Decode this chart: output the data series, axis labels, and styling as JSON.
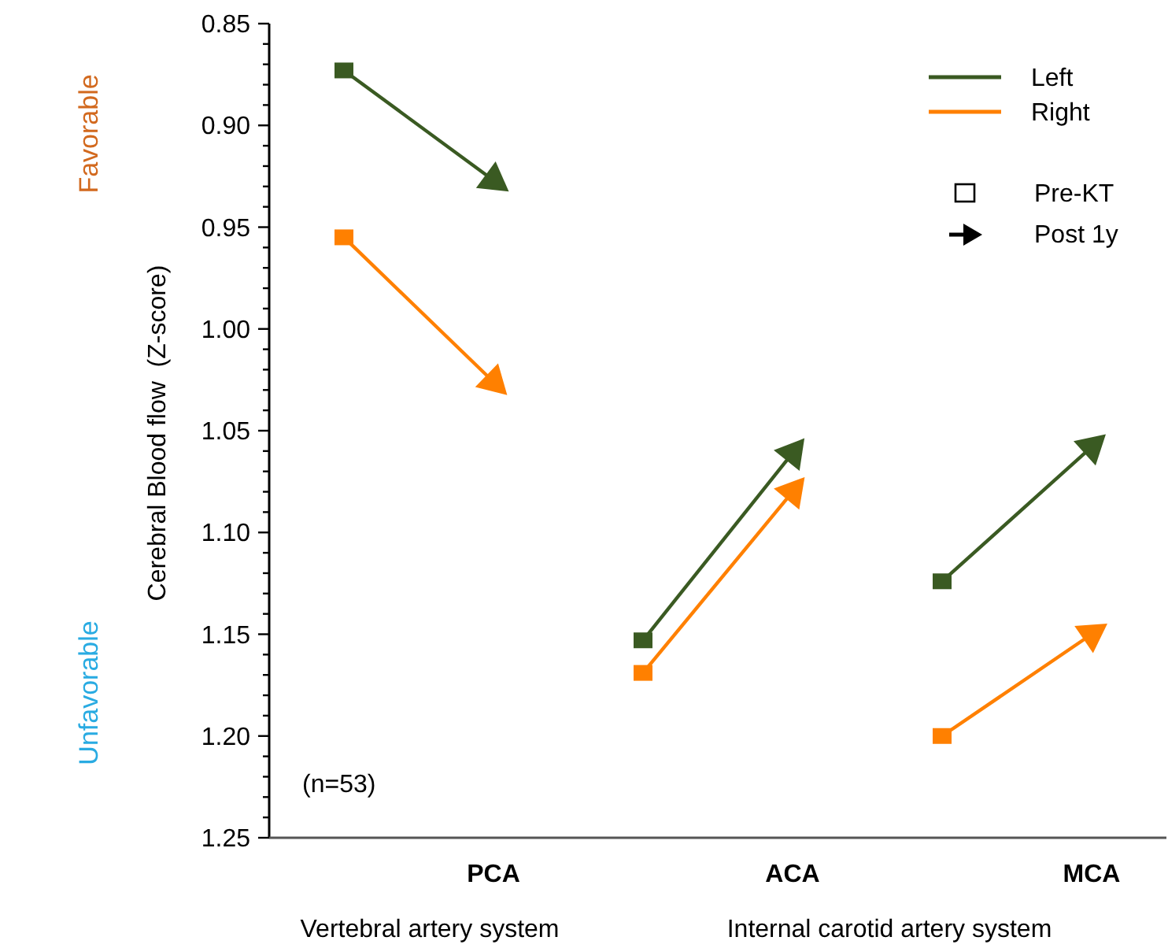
{
  "chart_data": {
    "type": "line",
    "ylabel": "Cerebral Blood flow  (Z-score)",
    "categories": [
      null,
      "PCA",
      null,
      "ACA",
      null,
      "MCA"
    ],
    "ylim": [
      1.25,
      0.85
    ],
    "yticks": [
      {
        "value": 0.85,
        "label": "0.85"
      },
      {
        "value": 0.86,
        "label": null
      },
      {
        "value": 0.87,
        "label": null
      },
      {
        "value": 0.88,
        "label": null
      },
      {
        "value": 0.89,
        "label": null
      },
      {
        "value": 0.9,
        "label": "0.90"
      },
      {
        "value": 0.91,
        "label": null
      },
      {
        "value": 0.92,
        "label": null
      },
      {
        "value": 0.93,
        "label": null
      },
      {
        "value": 0.94,
        "label": null
      },
      {
        "value": 0.95,
        "label": "0.95"
      },
      {
        "value": 0.96,
        "label": null
      },
      {
        "value": 0.97,
        "label": null
      },
      {
        "value": 0.98,
        "label": null
      },
      {
        "value": 0.99,
        "label": null
      },
      {
        "value": 1.0,
        "label": "1.00"
      },
      {
        "value": 1.01,
        "label": null
      },
      {
        "value": 1.02,
        "label": null
      },
      {
        "value": 1.03,
        "label": null
      },
      {
        "value": 1.04,
        "label": null
      },
      {
        "value": 1.05,
        "label": "1.05"
      },
      {
        "value": 1.06,
        "label": null
      },
      {
        "value": 1.07,
        "label": null
      },
      {
        "value": 1.08,
        "label": null
      },
      {
        "value": 1.09,
        "label": null
      },
      {
        "value": 1.1,
        "label": "1.10"
      },
      {
        "value": 1.11,
        "label": null
      },
      {
        "value": 1.12,
        "label": null
      },
      {
        "value": 1.13,
        "label": null
      },
      {
        "value": 1.14,
        "label": null
      },
      {
        "value": 1.15,
        "label": "1.15"
      },
      {
        "value": 1.16,
        "label": null
      },
      {
        "value": 1.17,
        "label": null
      },
      {
        "value": 1.18,
        "label": null
      },
      {
        "value": 1.19,
        "label": null
      },
      {
        "value": 1.2,
        "label": "1.20"
      },
      {
        "value": 1.21,
        "label": null
      },
      {
        "value": 1.22,
        "label": null
      },
      {
        "value": 1.23,
        "label": null
      },
      {
        "value": 1.24,
        "label": null
      },
      {
        "value": 1.25,
        "label": "1.25"
      }
    ],
    "legend": "top right",
    "grid": false,
    "series": [
      {
        "name": "Left",
        "color": "#3a5a22",
        "values": [
          0.873,
          0.927,
          null,
          null,
          null,
          null
        ]
      },
      {
        "name": "Right",
        "color": "#ff8000",
        "values": [
          0.955,
          1.026,
          null,
          null,
          null,
          null
        ]
      },
      {
        "color": "#3a5a22",
        "values": [
          null,
          null,
          1.153,
          1.061,
          null,
          null
        ]
      },
      {
        "color": "#ff8000",
        "values": [
          null,
          null,
          1.169,
          1.08,
          null,
          null
        ]
      },
      {
        "color": "#3a5a22",
        "values": [
          null,
          null,
          null,
          null,
          1.124,
          1.058
        ]
      },
      {
        "color": "#ff8000",
        "values": [
          null,
          null,
          null,
          null,
          1.2,
          1.15
        ]
      },
      {
        "type": "scatter",
        "marker": "square",
        "color": "#3a5a22",
        "values": [
          0.873,
          null,
          1.153,
          null,
          1.124,
          null
        ]
      },
      {
        "type": "scatter",
        "marker": "square",
        "color": "#ff8000",
        "values": [
          0.955,
          null,
          1.169,
          null,
          1.2,
          null
        ]
      },
      {
        "type": "scatter",
        "marker": "triangle",
        "color": "#3a5a22",
        "values": [
          null,
          0.927,
          null,
          1.061,
          null,
          1.058
        ]
      },
      {
        "type": "scatter",
        "marker": "triangle",
        "color": "#ff8000",
        "values": [
          null,
          1.026,
          null,
          1.08,
          null,
          1.15
        ]
      }
    ],
    "annotations": [
      "Favorable",
      "Unfavorable",
      "(n=53)",
      "Vertebral artery system",
      "Internal carotid artery system",
      "Pre-KT",
      "Post 1y"
    ]
  }
}
